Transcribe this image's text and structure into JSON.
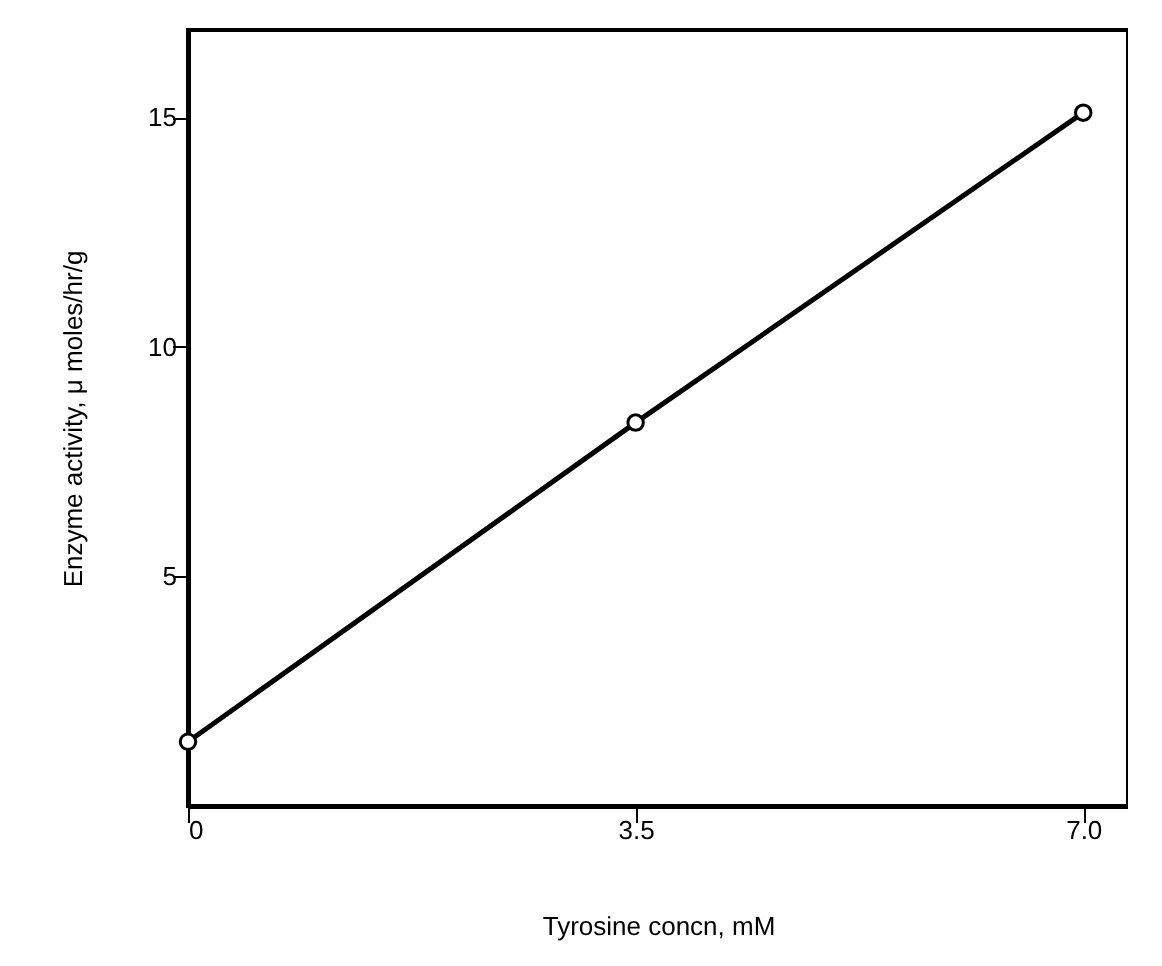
{
  "chart_data": {
    "type": "line",
    "x": [
      0,
      3.5,
      7.0
    ],
    "series": [
      {
        "color": "#000000",
        "values": [
          1.4,
          8.35,
          15.1
        ]
      }
    ],
    "xlabel": "Tyrosine  concn,      mM",
    "ylabel": "Enzyme activity,      μ moles/hr/g",
    "xlim": [
      0,
      7.35
    ],
    "ylim": [
      0,
      16.9
    ],
    "xticks": [
      0,
      3.5,
      {
        "value": 7.0,
        "label": "7.0"
      }
    ],
    "yticks": [
      5,
      10,
      15
    ],
    "marker": "circle",
    "line_style": "solid",
    "grid": false
  }
}
